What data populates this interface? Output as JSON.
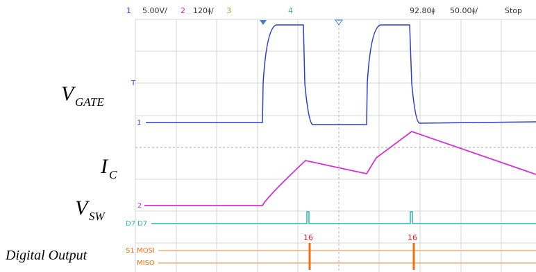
{
  "header": {
    "ch1": "1",
    "ch1_scale": "5.00V/",
    "ch2": "2",
    "ch2_scale": "120ǂ/",
    "ch3": "3",
    "ch4": "4",
    "delay": "92.80ǂ",
    "timebase": "50.00ǂ/",
    "status": "Stop"
  },
  "labels": {
    "vgate": {
      "main": "V",
      "sub": "GATE"
    },
    "ic": {
      "main": "I",
      "sub": "C"
    },
    "vsw": {
      "main": "V",
      "sub": "SW"
    },
    "digital": "Digital Output"
  },
  "markers": {
    "trigger": "T",
    "ch1": "1",
    "ch2": "2",
    "d7_prefix": "D7",
    "d7": "D7",
    "s1_prefix": "S1",
    "mosi": "MOSI",
    "miso": "MISO"
  },
  "decodes": [
    "16",
    "16"
  ]
}
